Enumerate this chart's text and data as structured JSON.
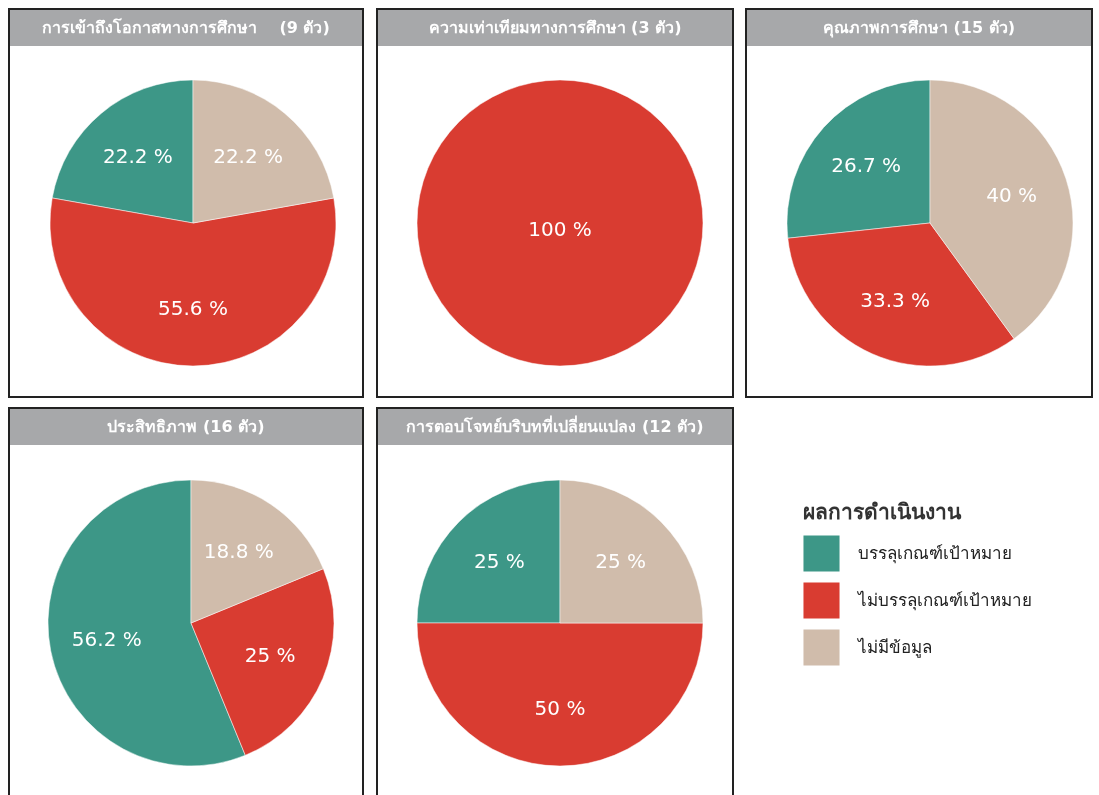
{
  "chart_data": [
    {
      "type": "pie",
      "title": "การเข้าถึงโอกาสทางการศึกษา    (9 ตัว)",
      "categories": [
        null,
        null,
        null
      ],
      "values": [
        22.2,
        55.6,
        22.2
      ],
      "value_labels": [
        "22.2 %",
        "55.6 %",
        "22.2 %"
      ],
      "colors": [
        "#3d9787",
        "#d93c31",
        "#d0bcab"
      ]
    },
    {
      "type": "pie",
      "title": "ความเท่าเทียมทางการศึกษา (3 ตัว)",
      "categories": [
        null
      ],
      "values": [
        100
      ],
      "value_labels": [
        "100 %"
      ],
      "colors": [
        "#d93c31"
      ]
    },
    {
      "type": "pie",
      "title": "คุณภาพการศึกษา (15 ตัว)",
      "categories": [
        null,
        null,
        null
      ],
      "values": [
        26.7,
        33.3,
        40
      ],
      "value_labels": [
        "26.7 %",
        "33.3 %",
        "40 %"
      ],
      "colors": [
        "#3d9787",
        "#d93c31",
        "#d0bcab"
      ]
    },
    {
      "type": "pie",
      "title": "ประสิทธิภาพ (16 ตัว)",
      "categories": [
        null,
        null,
        null
      ],
      "values": [
        56.2,
        25,
        18.8
      ],
      "value_labels": [
        "56.2 %",
        "25 %",
        "18.8 %"
      ],
      "colors": [
        "#3d9787",
        "#d93c31",
        "#d0bcab"
      ]
    },
    {
      "type": "pie",
      "title": "การตอบโจทย์บริบทที่เปลี่ยนแปลง (12 ตัว)",
      "categories": [
        "บรรลุเกณฑ์เป้าหมาย",
        "ไม่บรรลุเกณฑ์เป้าหมาย",
        "ไม่มีข้อมูล"
      ],
      "values": [
        25,
        50,
        25
      ],
      "value_labels": [
        "25 %",
        "50 %",
        "25 %"
      ],
      "colors": [
        "#3d9787",
        "#d93c31",
        "#d0bcab"
      ],
      "legend": "right",
      "legend_title": "ผลการดำเนินงาน"
    }
  ]
}
